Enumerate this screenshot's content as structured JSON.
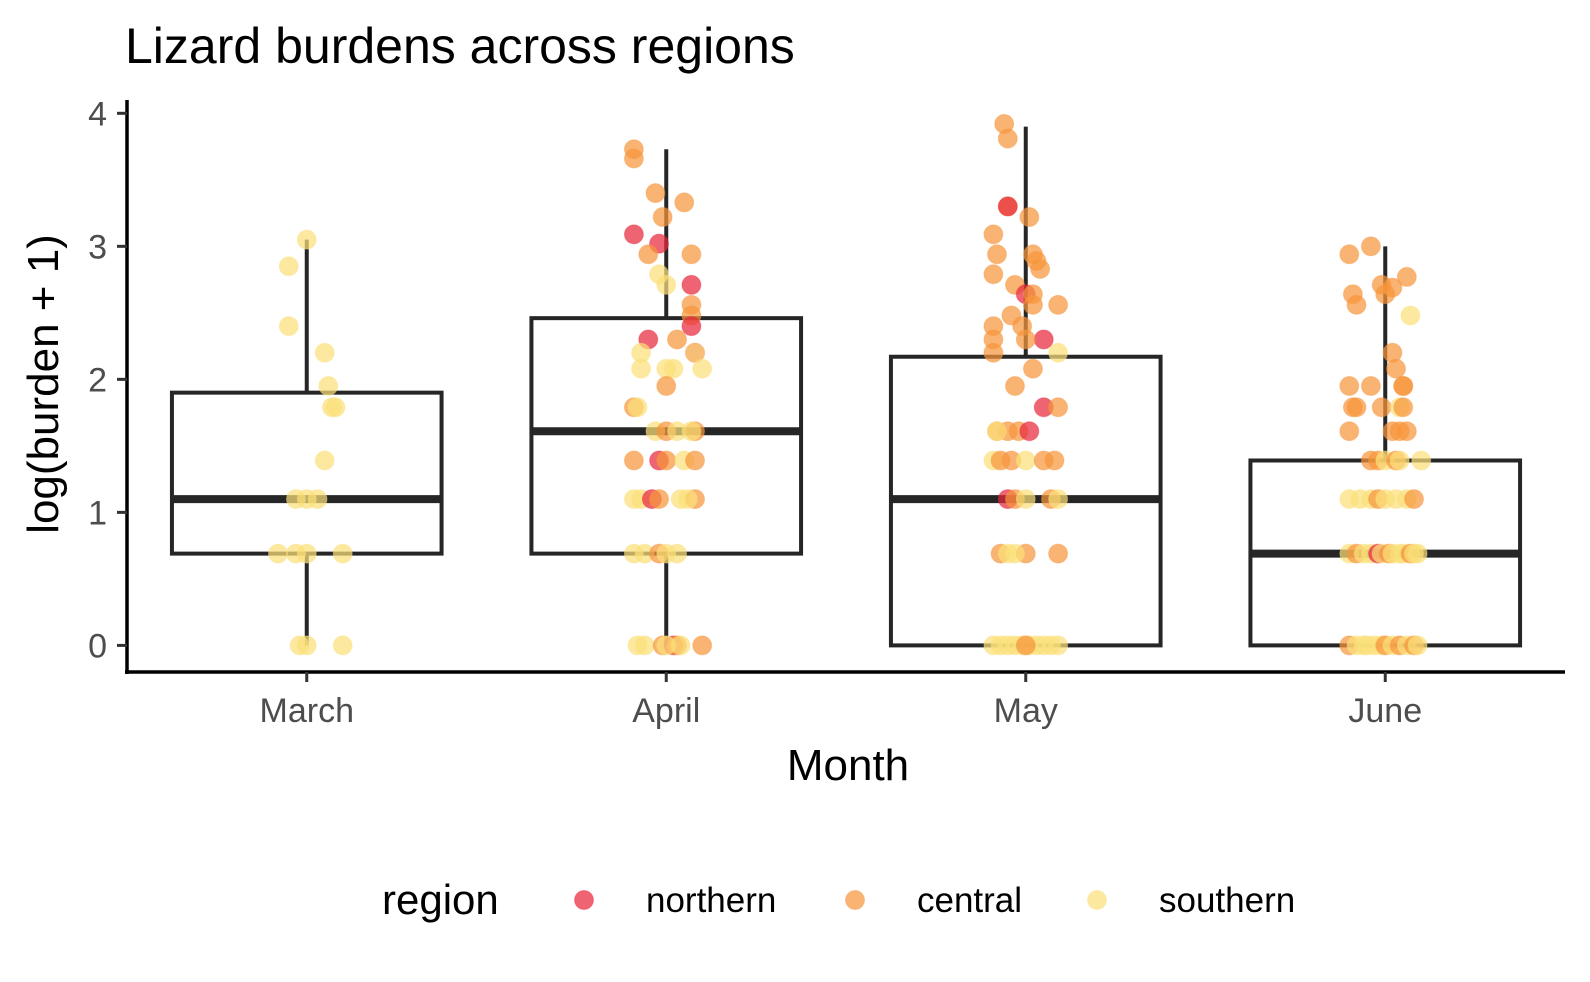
{
  "chart_data": {
    "type": "box",
    "title": "Lizard burdens across regions",
    "xlabel": "Month",
    "ylabel": "log(burden + 1)",
    "categories": [
      "March",
      "April",
      "May",
      "June"
    ],
    "ylim": [
      -0.2,
      4.1
    ],
    "yticks": [
      0,
      1,
      2,
      3,
      4
    ],
    "grid": false,
    "legend": {
      "title": "region",
      "position": "bottom"
    },
    "series": [
      {
        "name": "northern",
        "color": "#e8283c"
      },
      {
        "name": "central",
        "color": "#f7963c"
      },
      {
        "name": "southern",
        "color": "#fbe07a"
      }
    ],
    "boxes": [
      {
        "category": "March",
        "min": 0.0,
        "q1": 0.69,
        "median": 1.1,
        "q3": 1.9,
        "max": 3.05
      },
      {
        "category": "April",
        "min": 0.0,
        "q1": 0.69,
        "median": 1.61,
        "q3": 2.46,
        "max": 3.73
      },
      {
        "category": "May",
        "min": 0.0,
        "q1": 0.0,
        "median": 1.1,
        "q3": 2.17,
        "max": 3.9
      },
      {
        "category": "June",
        "min": 0.0,
        "q1": 0.0,
        "median": 0.69,
        "q3": 1.39,
        "max": 3.0
      }
    ],
    "points": {
      "March": [
        [
          "southern",
          3.05,
          0.0
        ],
        [
          "southern",
          2.85,
          -0.05
        ],
        [
          "southern",
          2.4,
          -0.05
        ],
        [
          "southern",
          2.2,
          0.05
        ],
        [
          "southern",
          1.95,
          0.06
        ],
        [
          "southern",
          1.79,
          0.08
        ],
        [
          "southern",
          1.79,
          0.07
        ],
        [
          "southern",
          1.39,
          0.05
        ],
        [
          "southern",
          1.1,
          -0.03
        ],
        [
          "southern",
          1.1,
          0.0
        ],
        [
          "southern",
          1.1,
          0.03
        ],
        [
          "southern",
          0.69,
          -0.08
        ],
        [
          "southern",
          0.69,
          -0.03
        ],
        [
          "southern",
          0.69,
          0.0
        ],
        [
          "southern",
          0.69,
          0.1
        ],
        [
          "southern",
          0.0,
          -0.02
        ],
        [
          "southern",
          0.0,
          0.0
        ],
        [
          "southern",
          0.0,
          0.1
        ]
      ],
      "April": [
        [
          "central",
          3.73,
          -0.09
        ],
        [
          "central",
          3.66,
          -0.09
        ],
        [
          "central",
          3.4,
          -0.03
        ],
        [
          "central",
          3.33,
          0.05
        ],
        [
          "central",
          3.22,
          -0.01
        ],
        [
          "northern",
          3.09,
          -0.09
        ],
        [
          "northern",
          3.02,
          -0.02
        ],
        [
          "central",
          2.94,
          0.07
        ],
        [
          "central",
          2.94,
          -0.05
        ],
        [
          "southern",
          2.79,
          -0.02
        ],
        [
          "southern",
          2.71,
          0.0
        ],
        [
          "northern",
          2.71,
          0.07
        ],
        [
          "central",
          2.56,
          0.07
        ],
        [
          "central",
          2.48,
          0.07
        ],
        [
          "northern",
          2.4,
          0.07
        ],
        [
          "northern",
          2.3,
          -0.05
        ],
        [
          "central",
          2.3,
          0.03
        ],
        [
          "northern",
          2.2,
          0.08
        ],
        [
          "southern",
          2.2,
          0.08
        ],
        [
          "southern",
          2.2,
          -0.07
        ],
        [
          "southern",
          2.08,
          -0.07
        ],
        [
          "southern",
          2.08,
          0.0
        ],
        [
          "southern",
          2.08,
          0.02
        ],
        [
          "southern",
          2.08,
          0.1
        ],
        [
          "central",
          1.95,
          0.0
        ],
        [
          "central",
          1.79,
          -0.09
        ],
        [
          "southern",
          1.79,
          -0.08
        ],
        [
          "southern",
          1.61,
          -0.03
        ],
        [
          "central",
          1.61,
          0.0
        ],
        [
          "southern",
          1.61,
          0.03
        ],
        [
          "central",
          1.61,
          0.08
        ],
        [
          "southern",
          1.61,
          0.07
        ],
        [
          "central",
          1.39,
          -0.09
        ],
        [
          "northern",
          1.39,
          -0.02
        ],
        [
          "central",
          1.39,
          0.0
        ],
        [
          "southern",
          1.39,
          0.05
        ],
        [
          "central",
          1.39,
          0.08
        ],
        [
          "southern",
          1.1,
          -0.09
        ],
        [
          "southern",
          1.1,
          -0.07
        ],
        [
          "northern",
          1.1,
          -0.04
        ],
        [
          "central",
          1.1,
          -0.02
        ],
        [
          "southern",
          1.1,
          0.04
        ],
        [
          "central",
          1.1,
          0.08
        ],
        [
          "southern",
          1.1,
          0.06
        ],
        [
          "southern",
          0.69,
          -0.09
        ],
        [
          "southern",
          0.69,
          -0.06
        ],
        [
          "central",
          0.69,
          -0.02
        ],
        [
          "southern",
          0.69,
          0.0
        ],
        [
          "southern",
          0.69,
          0.03
        ],
        [
          "southern",
          0.0,
          -0.08
        ],
        [
          "southern",
          0.0,
          -0.06
        ],
        [
          "central",
          0.0,
          -0.01
        ],
        [
          "northern",
          0.0,
          0.02
        ],
        [
          "central",
          0.0,
          0.03
        ],
        [
          "southern",
          0.0,
          0.04
        ],
        [
          "central",
          0.0,
          0.1
        ],
        [
          "southern",
          0.0,
          0.0
        ]
      ],
      "May": [
        [
          "central",
          3.92,
          -0.06
        ],
        [
          "central",
          3.81,
          -0.05
        ],
        [
          "central",
          3.3,
          -0.05
        ],
        [
          "northern",
          3.3,
          -0.05
        ],
        [
          "central",
          3.22,
          0.01
        ],
        [
          "central",
          3.09,
          -0.09
        ],
        [
          "central",
          2.94,
          0.02
        ],
        [
          "central",
          2.94,
          -0.08
        ],
        [
          "central",
          2.89,
          0.03
        ],
        [
          "central",
          2.83,
          0.04
        ],
        [
          "central",
          2.79,
          -0.09
        ],
        [
          "central",
          2.71,
          -0.03
        ],
        [
          "northern",
          2.64,
          0.0
        ],
        [
          "central",
          2.64,
          0.02
        ],
        [
          "central",
          2.56,
          0.09
        ],
        [
          "central",
          2.56,
          0.02
        ],
        [
          "central",
          2.48,
          -0.04
        ],
        [
          "central",
          2.4,
          -0.01
        ],
        [
          "central",
          2.4,
          -0.09
        ],
        [
          "central",
          2.3,
          -0.09
        ],
        [
          "northern",
          2.3,
          0.05
        ],
        [
          "central",
          2.3,
          0.0
        ],
        [
          "central",
          2.2,
          -0.09
        ],
        [
          "southern",
          2.2,
          0.09
        ],
        [
          "central",
          2.08,
          0.02
        ],
        [
          "central",
          1.95,
          -0.03
        ],
        [
          "northern",
          1.79,
          0.05
        ],
        [
          "central",
          1.79,
          0.09
        ],
        [
          "central",
          1.61,
          -0.08
        ],
        [
          "central",
          1.61,
          -0.02
        ],
        [
          "northern",
          1.61,
          0.01
        ],
        [
          "central",
          1.61,
          -0.05
        ],
        [
          "southern",
          1.61,
          -0.08
        ],
        [
          "southern",
          1.39,
          -0.09
        ],
        [
          "central",
          1.39,
          -0.07
        ],
        [
          "central",
          1.39,
          -0.04
        ],
        [
          "southern",
          1.39,
          0.0
        ],
        [
          "central",
          1.39,
          0.05
        ],
        [
          "central",
          1.39,
          0.08
        ],
        [
          "northern",
          1.1,
          -0.05
        ],
        [
          "central",
          1.1,
          -0.03
        ],
        [
          "southern",
          1.1,
          0.0
        ],
        [
          "central",
          1.1,
          0.07
        ],
        [
          "southern",
          1.1,
          0.09
        ],
        [
          "central",
          0.69,
          -0.07
        ],
        [
          "southern",
          0.69,
          -0.05
        ],
        [
          "central",
          0.69,
          0.0
        ],
        [
          "central",
          0.69,
          0.09
        ],
        [
          "southern",
          0.69,
          -0.03
        ],
        [
          "southern",
          0.0,
          -0.09
        ],
        [
          "southern",
          0.0,
          -0.07
        ],
        [
          "southern",
          0.0,
          -0.05
        ],
        [
          "southern",
          0.0,
          -0.03
        ],
        [
          "southern",
          0.0,
          -0.01
        ],
        [
          "southern",
          0.0,
          0.01
        ],
        [
          "southern",
          0.0,
          0.03
        ],
        [
          "southern",
          0.0,
          0.05
        ],
        [
          "southern",
          0.0,
          0.07
        ],
        [
          "southern",
          0.0,
          0.09
        ],
        [
          "central",
          0.0,
          0.0
        ]
      ],
      "June": [
        [
          "central",
          3.0,
          -0.04
        ],
        [
          "central",
          2.94,
          -0.1
        ],
        [
          "central",
          2.77,
          0.06
        ],
        [
          "central",
          2.71,
          -0.01
        ],
        [
          "central",
          2.69,
          0.02
        ],
        [
          "central",
          2.64,
          -0.09
        ],
        [
          "central",
          2.64,
          0.0
        ],
        [
          "central",
          2.56,
          -0.08
        ],
        [
          "southern",
          2.48,
          0.07
        ],
        [
          "central",
          2.2,
          0.02
        ],
        [
          "central",
          2.08,
          0.03
        ],
        [
          "central",
          1.95,
          -0.1
        ],
        [
          "central",
          1.95,
          -0.04
        ],
        [
          "central",
          1.95,
          0.05
        ],
        [
          "central",
          1.95,
          0.05
        ],
        [
          "central",
          1.79,
          -0.09
        ],
        [
          "central",
          1.79,
          -0.08
        ],
        [
          "central",
          1.79,
          -0.01
        ],
        [
          "southern",
          1.79,
          0.04
        ],
        [
          "central",
          1.79,
          0.05
        ],
        [
          "central",
          1.61,
          -0.1
        ],
        [
          "central",
          1.61,
          0.02
        ],
        [
          "central",
          1.61,
          0.04
        ],
        [
          "central",
          1.61,
          0.06
        ],
        [
          "central",
          1.39,
          -0.04
        ],
        [
          "central",
          1.39,
          -0.02
        ],
        [
          "southern",
          1.39,
          0.0
        ],
        [
          "central",
          1.39,
          0.03
        ],
        [
          "southern",
          1.39,
          0.04
        ],
        [
          "southern",
          1.39,
          0.1
        ],
        [
          "southern",
          1.1,
          -0.1
        ],
        [
          "southern",
          1.1,
          -0.07
        ],
        [
          "southern",
          1.1,
          -0.04
        ],
        [
          "central",
          1.1,
          -0.02
        ],
        [
          "southern",
          1.1,
          0.0
        ],
        [
          "southern",
          1.1,
          0.03
        ],
        [
          "southern",
          1.1,
          0.06
        ],
        [
          "central",
          1.1,
          0.08
        ],
        [
          "southern",
          0.69,
          -0.1
        ],
        [
          "central",
          0.69,
          -0.08
        ],
        [
          "southern",
          0.69,
          -0.06
        ],
        [
          "southern",
          0.69,
          -0.04
        ],
        [
          "northern",
          0.69,
          -0.02
        ],
        [
          "southern",
          0.69,
          -0.01
        ],
        [
          "central",
          0.69,
          0.01
        ],
        [
          "southern",
          0.69,
          0.02
        ],
        [
          "southern",
          0.69,
          0.04
        ],
        [
          "southern",
          0.69,
          0.05
        ],
        [
          "central",
          0.69,
          0.07
        ],
        [
          "southern",
          0.69,
          0.08
        ],
        [
          "southern",
          0.69,
          0.09
        ],
        [
          "central",
          0.0,
          -0.1
        ],
        [
          "southern",
          0.0,
          -0.08
        ],
        [
          "southern",
          0.0,
          -0.06
        ],
        [
          "southern",
          0.0,
          -0.05
        ],
        [
          "southern",
          0.0,
          -0.03
        ],
        [
          "southern",
          0.0,
          -0.01
        ],
        [
          "central",
          0.0,
          0.0
        ],
        [
          "southern",
          0.0,
          0.02
        ],
        [
          "central",
          0.0,
          0.04
        ],
        [
          "southern",
          0.0,
          0.06
        ],
        [
          "central",
          0.0,
          0.08
        ],
        [
          "southern",
          0.0,
          0.09
        ]
      ]
    }
  }
}
